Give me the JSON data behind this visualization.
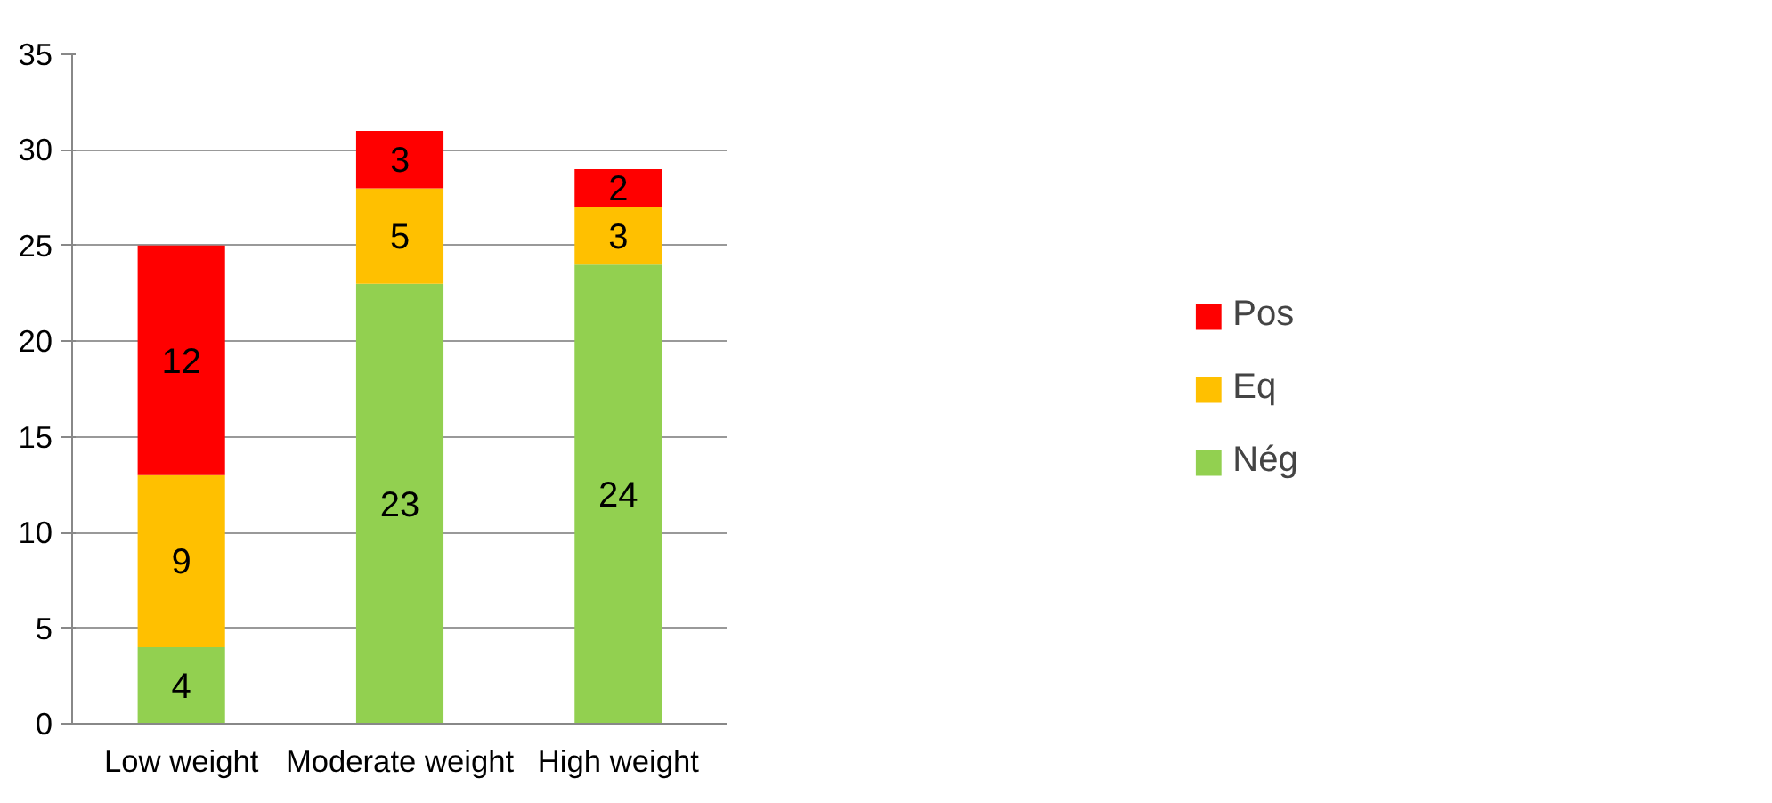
{
  "chart_data": {
    "type": "bar",
    "stacked": true,
    "categories": [
      "Low weight",
      "Moderate weight",
      "High weight"
    ],
    "series": [
      {
        "name": "Nég",
        "color": "#92d050",
        "values": [
          4,
          23,
          24
        ]
      },
      {
        "name": "Eq",
        "color": "#ffc000",
        "values": [
          9,
          5,
          3
        ]
      },
      {
        "name": "Pos",
        "color": "#ff0000",
        "values": [
          12,
          3,
          2
        ]
      }
    ],
    "ylim": [
      0,
      35
    ],
    "yticks": [
      0,
      5,
      10,
      15,
      20,
      25,
      30,
      35
    ],
    "grid": "y",
    "legend": "right",
    "data_labels": true
  }
}
